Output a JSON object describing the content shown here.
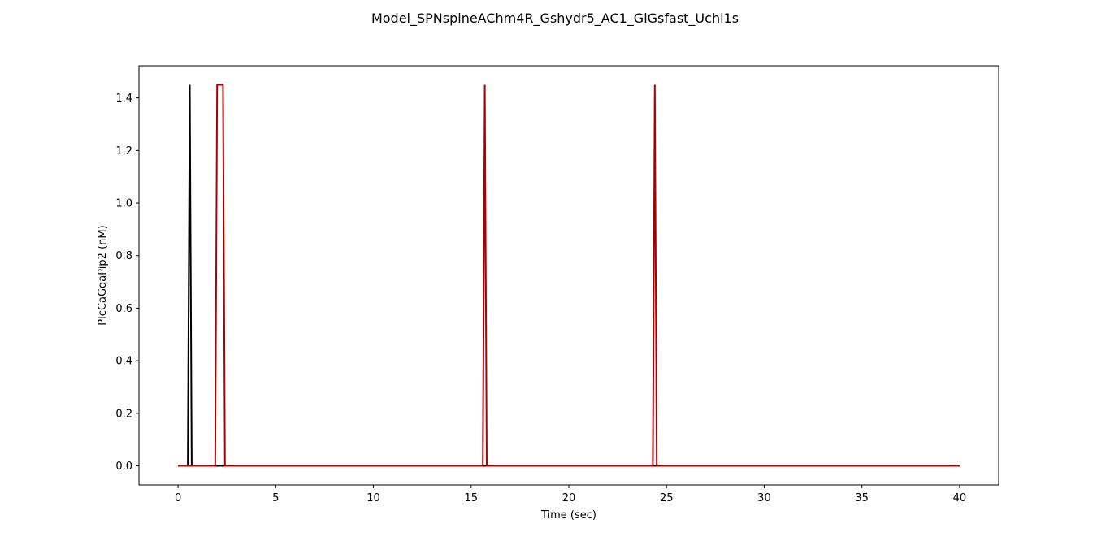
{
  "chart_data": {
    "type": "line",
    "title": "Model_SPNspineAChm4R_Gshydr5_AC1_GiGsfast_Uchi1s",
    "xlabel": "Time (sec)",
    "ylabel": "PlcCaGqaPip2 (nM)",
    "xlim": [
      -2,
      42
    ],
    "ylim": [
      -0.0725,
      1.5225
    ],
    "xticks": [
      0,
      5,
      10,
      15,
      20,
      25,
      30,
      35,
      40
    ],
    "yticks": [
      0.0,
      0.2,
      0.4,
      0.6,
      0.8,
      1.0,
      1.2,
      1.4
    ],
    "ytick_labels": [
      "0.0",
      "0.2",
      "0.4",
      "0.6",
      "0.8",
      "1.0",
      "1.2",
      "1.4"
    ],
    "grid": false,
    "series": [
      {
        "color": "#000000",
        "x": [
          0,
          0.5,
          0.6,
          0.7,
          40
        ],
        "y": [
          0,
          0,
          1.45,
          0,
          0
        ]
      },
      {
        "color": "#aa0000",
        "x": [
          0,
          1.9,
          2.0,
          2.3,
          2.4,
          15.6,
          15.7,
          15.8,
          24.3,
          24.4,
          24.5,
          40
        ],
        "y": [
          0,
          0,
          1.45,
          1.45,
          0,
          0,
          1.45,
          0,
          0,
          1.45,
          0,
          0
        ]
      }
    ]
  }
}
